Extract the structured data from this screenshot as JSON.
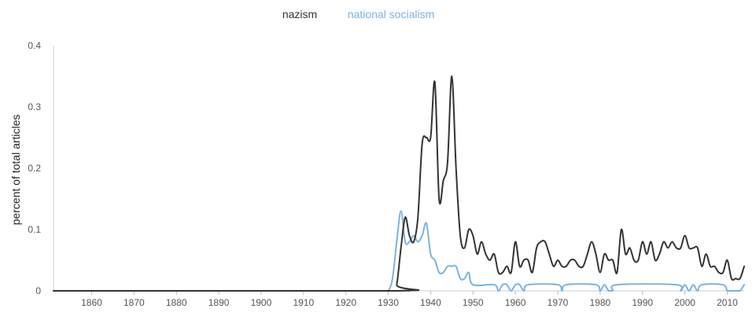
{
  "chart_data": {
    "type": "line",
    "title": "",
    "xlabel": "",
    "ylabel": "percent of total articles",
    "xlim": [
      1851,
      2014
    ],
    "ylim": [
      0,
      0.4
    ],
    "x_ticks": [
      1860,
      1870,
      1880,
      1890,
      1900,
      1910,
      1920,
      1930,
      1940,
      1950,
      1960,
      1970,
      1980,
      1990,
      2000,
      2010
    ],
    "y_ticks": [
      0,
      0.1,
      0.2,
      0.3,
      0.4
    ],
    "y_tick_labels": [
      "0",
      "0.1",
      "0.2",
      "0.3",
      "0.4"
    ],
    "grid": false,
    "legend_placement": "top-center",
    "series": [
      {
        "name": "nazism",
        "color": "#333333",
        "points": [
          [
            1851,
            0
          ],
          [
            1931,
            0
          ],
          [
            1932,
            0.01
          ],
          [
            1933,
            0.07
          ],
          [
            1934,
            0.12
          ],
          [
            1935,
            0.09
          ],
          [
            1936,
            0.08
          ],
          [
            1937,
            0.12
          ],
          [
            1938,
            0.24
          ],
          [
            1939,
            0.25
          ],
          [
            1940,
            0.25
          ],
          [
            1941,
            0.34
          ],
          [
            1942,
            0.15
          ],
          [
            1943,
            0.18
          ],
          [
            1944,
            0.21
          ],
          [
            1945,
            0.35
          ],
          [
            1946,
            0.2
          ],
          [
            1947,
            0.09
          ],
          [
            1948,
            0.07
          ],
          [
            1949,
            0.1
          ],
          [
            1950,
            0.09
          ],
          [
            1951,
            0.06
          ],
          [
            1952,
            0.08
          ],
          [
            1953,
            0.06
          ],
          [
            1954,
            0.05
          ],
          [
            1955,
            0.06
          ],
          [
            1956,
            0.03
          ],
          [
            1957,
            0.03
          ],
          [
            1958,
            0.04
          ],
          [
            1959,
            0.03
          ],
          [
            1960,
            0.08
          ],
          [
            1961,
            0.04
          ],
          [
            1962,
            0.05
          ],
          [
            1963,
            0.05
          ],
          [
            1964,
            0.03
          ],
          [
            1965,
            0.07
          ],
          [
            1966,
            0.08
          ],
          [
            1967,
            0.08
          ],
          [
            1968,
            0.06
          ],
          [
            1969,
            0.04
          ],
          [
            1970,
            0.05
          ],
          [
            1971,
            0.04
          ],
          [
            1972,
            0.04
          ],
          [
            1973,
            0.05
          ],
          [
            1974,
            0.05
          ],
          [
            1975,
            0.04
          ],
          [
            1976,
            0.04
          ],
          [
            1977,
            0.06
          ],
          [
            1978,
            0.08
          ],
          [
            1979,
            0.06
          ],
          [
            1980,
            0.03
          ],
          [
            1981,
            0.06
          ],
          [
            1982,
            0.05
          ],
          [
            1983,
            0.05
          ],
          [
            1984,
            0.03
          ],
          [
            1985,
            0.1
          ],
          [
            1986,
            0.06
          ],
          [
            1987,
            0.07
          ],
          [
            1988,
            0.05
          ],
          [
            1989,
            0.05
          ],
          [
            1990,
            0.08
          ],
          [
            1991,
            0.06
          ],
          [
            1992,
            0.08
          ],
          [
            1993,
            0.05
          ],
          [
            1994,
            0.06
          ],
          [
            1995,
            0.08
          ],
          [
            1996,
            0.07
          ],
          [
            1997,
            0.08
          ],
          [
            1998,
            0.07
          ],
          [
            1999,
            0.07
          ],
          [
            2000,
            0.09
          ],
          [
            2001,
            0.07
          ],
          [
            2002,
            0.07
          ],
          [
            2003,
            0.07
          ],
          [
            2004,
            0.04
          ],
          [
            2005,
            0.06
          ],
          [
            2006,
            0.04
          ],
          [
            2007,
            0.04
          ],
          [
            2008,
            0.03
          ],
          [
            2009,
            0.03
          ],
          [
            2010,
            0.05
          ],
          [
            2011,
            0.02
          ],
          [
            2012,
            0.02
          ],
          [
            2013,
            0.02
          ],
          [
            2014,
            0.04
          ]
        ]
      },
      {
        "name": "national socialism",
        "color": "#7ab3e0",
        "points": [
          [
            1851,
            0
          ],
          [
            1929,
            0
          ],
          [
            1930,
            0.0
          ],
          [
            1931,
            0.02
          ],
          [
            1932,
            0.08
          ],
          [
            1933,
            0.13
          ],
          [
            1934,
            0.08
          ],
          [
            1935,
            0.08
          ],
          [
            1936,
            0.09
          ],
          [
            1937,
            0.08
          ],
          [
            1938,
            0.09
          ],
          [
            1939,
            0.11
          ],
          [
            1940,
            0.06
          ],
          [
            1941,
            0.05
          ],
          [
            1942,
            0.03
          ],
          [
            1943,
            0.03
          ],
          [
            1944,
            0.04
          ],
          [
            1945,
            0.04
          ],
          [
            1946,
            0.04
          ],
          [
            1947,
            0.02
          ],
          [
            1948,
            0.02
          ],
          [
            1949,
            0.03
          ],
          [
            1950,
            0.01
          ],
          [
            1955,
            0.01
          ],
          [
            1956,
            0.0
          ],
          [
            1957,
            0.01
          ],
          [
            1958,
            0.01
          ],
          [
            1959,
            0.0
          ],
          [
            1960,
            0.01
          ],
          [
            1961,
            0.01
          ],
          [
            1962,
            0.0
          ],
          [
            1963,
            0.01
          ],
          [
            1970,
            0.01
          ],
          [
            1971,
            0.0
          ],
          [
            1972,
            0.01
          ],
          [
            1979,
            0.01
          ],
          [
            1980,
            0.0
          ],
          [
            1981,
            0.01
          ],
          [
            1982,
            0.0
          ],
          [
            1983,
            0.0
          ],
          [
            1984,
            0.01
          ],
          [
            1998,
            0.01
          ],
          [
            1999,
            0.0
          ],
          [
            2000,
            0.01
          ],
          [
            2001,
            0.0
          ],
          [
            2002,
            0.01
          ],
          [
            2003,
            0.0
          ],
          [
            2004,
            0.01
          ],
          [
            2009,
            0.01
          ],
          [
            2010,
            0.0
          ],
          [
            2011,
            0.0
          ],
          [
            2012,
            0.0
          ],
          [
            2013,
            0.0
          ],
          [
            2014,
            0.01
          ]
        ]
      }
    ]
  }
}
